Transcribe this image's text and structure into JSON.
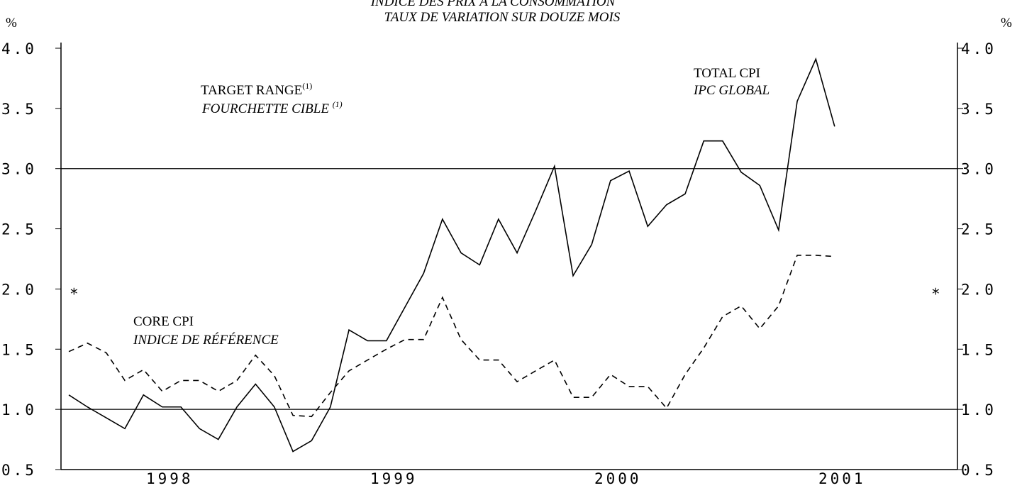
{
  "chart_data": {
    "type": "line",
    "title": "INDICE DES PRIX À LA CONSOMMATION",
    "subtitle": "TAUX DE VARIATION SUR DOUZE MOIS",
    "y_unit_left": "%",
    "y_unit_right": "%",
    "annotations": {
      "target_range": {
        "en": "TARGET RANGE",
        "en_sup": "(1)",
        "fr": "FOURCHETTE CIBLE ",
        "fr_sup": "(1)"
      },
      "total": {
        "en": "TOTAL CPI",
        "fr": "IPC GLOBAL"
      },
      "core": {
        "en": "CORE CPI",
        "fr": "INDICE DE RÉFÉRENCE"
      },
      "marker_left": "*",
      "marker_right": "*",
      "marker_value": 2.0
    },
    "target_range": [
      1.0,
      3.0
    ],
    "x": [
      1998,
      1998.083,
      1998.167,
      1998.25,
      1998.333,
      1998.417,
      1998.5,
      1998.583,
      1998.667,
      1998.75,
      1998.833,
      1998.917,
      1999,
      1999.083,
      1999.167,
      1999.25,
      1999.333,
      1999.417,
      1999.5,
      1999.583,
      1999.667,
      1999.75,
      1999.833,
      1999.917,
      2000,
      2000.083,
      2000.167,
      2000.25,
      2000.333,
      2000.417,
      2000.5,
      2000.583,
      2000.667,
      2000.75,
      2000.833,
      2000.917,
      2001,
      2001.083,
      2001.167,
      2001.25,
      2001.333,
      2001.417
    ],
    "series": [
      {
        "name": "TOTAL CPI",
        "color": "#000000",
        "dash": "solid",
        "values": [
          1.12,
          1.02,
          0.93,
          0.84,
          1.12,
          1.02,
          1.02,
          0.84,
          0.75,
          1.02,
          1.21,
          1.02,
          0.65,
          0.74,
          1.02,
          1.66,
          1.57,
          1.57,
          1.85,
          2.13,
          2.58,
          2.3,
          2.2,
          2.58,
          2.3,
          2.65,
          3.02,
          2.11,
          2.37,
          2.9,
          2.98,
          2.52,
          2.7,
          2.79,
          3.23,
          3.23,
          2.97,
          2.86,
          2.49,
          3.56,
          3.91,
          3.35
        ]
      },
      {
        "name": "CORE CPI",
        "color": "#000000",
        "dash": "dashed",
        "values": [
          1.48,
          1.55,
          1.47,
          1.24,
          1.33,
          1.15,
          1.24,
          1.24,
          1.15,
          1.24,
          1.45,
          1.28,
          0.95,
          0.94,
          1.14,
          1.32,
          1.41,
          1.5,
          1.58,
          1.58,
          1.93,
          1.58,
          1.41,
          1.41,
          1.23,
          1.32,
          1.41,
          1.1,
          1.1,
          1.29,
          1.19,
          1.19,
          1.01,
          1.29,
          1.51,
          1.77,
          1.86,
          1.67,
          1.86,
          2.28,
          2.28,
          2.27
        ]
      }
    ],
    "xlim": [
      1997.965,
      2001.965
    ],
    "xticks": [
      {
        "value": 1998.45,
        "label": "1998"
      },
      {
        "value": 1999.45,
        "label": "1999"
      },
      {
        "value": 2000.45,
        "label": "2000"
      },
      {
        "value": 2001.45,
        "label": "2001"
      }
    ],
    "ylim": [
      0.5,
      4.0
    ],
    "yticks": [
      {
        "value": 0.5,
        "label": "0.5"
      },
      {
        "value": 1.0,
        "label": "1.0"
      },
      {
        "value": 1.5,
        "label": "1.5"
      },
      {
        "value": 2.0,
        "label": "2.0"
      },
      {
        "value": 2.5,
        "label": "2.5"
      },
      {
        "value": 3.0,
        "label": "3.0"
      },
      {
        "value": 3.5,
        "label": "3.5"
      },
      {
        "value": 4.0,
        "label": "4.0"
      }
    ]
  }
}
